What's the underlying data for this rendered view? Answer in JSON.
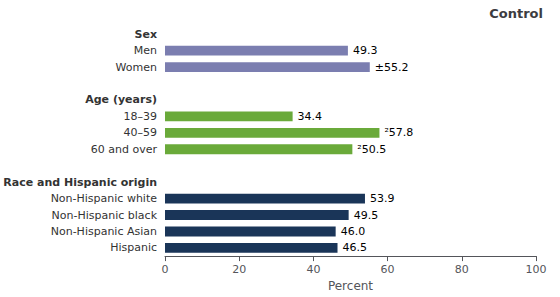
{
  "chart_data": {
    "type": "bar",
    "orientation": "horizontal",
    "title": "Control",
    "xlabel": "Percent",
    "categories": [
      "Sex",
      "Men",
      "Women",
      null,
      "Age (years)",
      "18–39",
      "40–59",
      "60 and over",
      null,
      "Race and Hispanic origin",
      "Non-Hispanic white",
      "Non-Hispanic black",
      "Non-Hispanic Asian",
      "Hispanic"
    ],
    "values": [
      null,
      49.3,
      55.2,
      null,
      null,
      34.4,
      57.8,
      50.5,
      null,
      null,
      53.9,
      49.5,
      46.0,
      46.5
    ],
    "value_labels": [
      null,
      "49.3",
      "±55.2",
      null,
      null,
      "34.4",
      "²57.8",
      "²50.5",
      null,
      null,
      "53.9",
      "49.5",
      "46.0",
      "46.5"
    ],
    "colors": [
      null,
      "#7b7eb0",
      "#7b7eb0",
      null,
      null,
      "#6aaa3a",
      "#6aaa3a",
      "#6aaa3a",
      null,
      null,
      "#1a3558",
      "#1a3558",
      "#1a3558",
      "#1a3558"
    ],
    "data_labels": true,
    "xlim": [
      0,
      100
    ],
    "xticks": [
      0,
      20,
      40,
      60,
      80,
      100
    ],
    "grid": false
  }
}
